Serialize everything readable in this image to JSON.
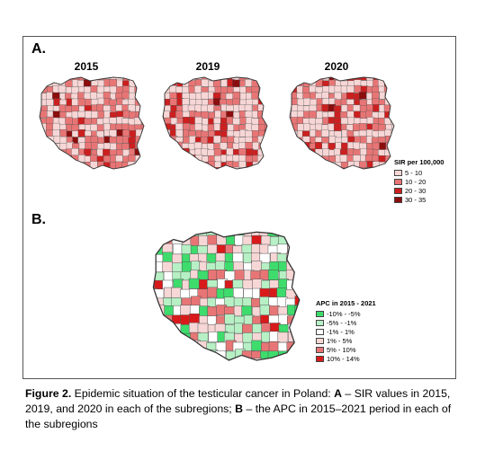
{
  "panel_a": {
    "label": "A.",
    "maps": [
      {
        "year": "2015"
      },
      {
        "year": "2019"
      },
      {
        "year": "2020"
      }
    ],
    "legend": {
      "title": "SIR per 100,000",
      "classes": [
        {
          "label": "5 - 10",
          "color": "#f7d6d6"
        },
        {
          "label": "10 - 20",
          "color": "#e87575"
        },
        {
          "label": "20 - 30",
          "color": "#cc1f1f"
        },
        {
          "label": "30 - 35",
          "color": "#8b0d0d"
        }
      ]
    }
  },
  "panel_b": {
    "label": "B.",
    "legend": {
      "title": "APC in 2015 - 2021",
      "classes": [
        {
          "label": "-10% - -5%",
          "color": "#3ddc6c"
        },
        {
          "label": "-5% - -1%",
          "color": "#b6f0c4"
        },
        {
          "label": "-1% - 1%",
          "color": "#ffffff"
        },
        {
          "label": "1% - 5%",
          "color": "#f7d6d6"
        },
        {
          "label": "5% - 10%",
          "color": "#e87575"
        },
        {
          "label": "10% - 14%",
          "color": "#d91a1a"
        }
      ]
    }
  },
  "caption": {
    "figure_label": "Figure 2.",
    "text_1": " Epidemic situation of the testicular cancer in Poland: ",
    "a": "A",
    "text_2": " – SIR values in 2015, 2019, and 2020 in each of the subregions; ",
    "b": "B",
    "text_3": " – the APC in 2015–2021 period in each of the subregions"
  }
}
